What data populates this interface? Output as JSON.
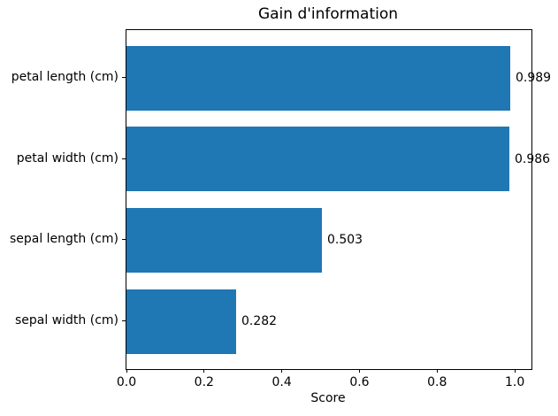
{
  "chart_data": {
    "type": "bar",
    "orientation": "horizontal",
    "title": "Gain d'information",
    "xlabel": "Score",
    "ylabel": "",
    "categories": [
      "petal length (cm)",
      "petal width (cm)",
      "sepal length (cm)",
      "sepal width (cm)"
    ],
    "values": [
      0.989,
      0.986,
      0.503,
      0.282
    ],
    "value_labels": [
      "0.989",
      "0.986",
      "0.503",
      "0.282"
    ],
    "x_ticks": [
      "0.0",
      "0.2",
      "0.4",
      "0.6",
      "0.8",
      "1.0"
    ],
    "x_tick_values": [
      0.0,
      0.2,
      0.4,
      0.6,
      0.8,
      1.0
    ],
    "xlim": [
      0,
      1.043
    ],
    "bar_color": "#1f77b4",
    "text_color": "#000000",
    "grid": false,
    "legend": "none"
  }
}
